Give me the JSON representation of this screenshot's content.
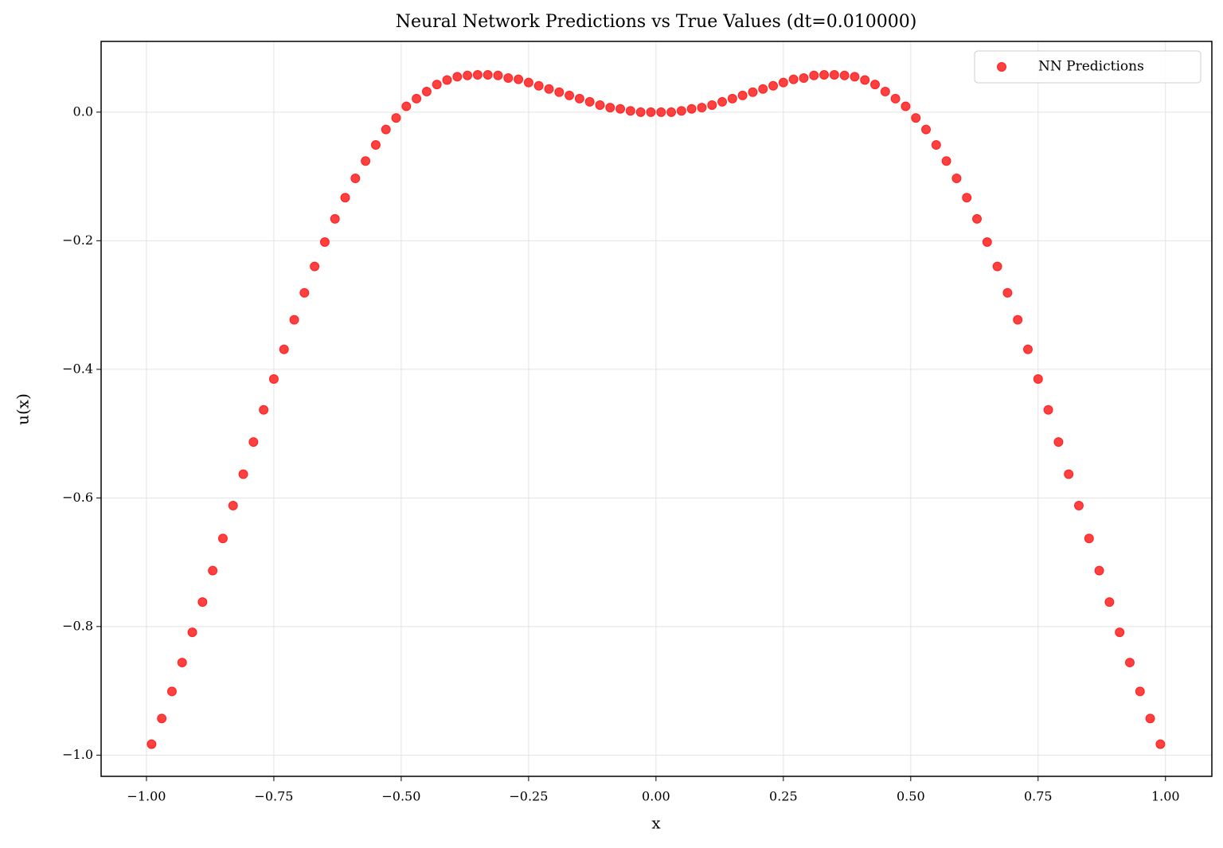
{
  "chart_data": {
    "type": "scatter",
    "title": "Neural Network Predictions vs True Values (dt=0.010000)",
    "x_label": "x",
    "y_label": "u(x)",
    "x": [
      -0.99,
      -0.97,
      -0.95,
      -0.93,
      -0.91,
      -0.89,
      -0.87,
      -0.85,
      -0.83,
      -0.81,
      -0.79,
      -0.77,
      -0.75,
      -0.73,
      -0.71,
      -0.69,
      -0.67,
      -0.65,
      -0.63,
      -0.61,
      -0.59,
      -0.57,
      -0.55,
      -0.53,
      -0.51,
      -0.49,
      -0.47,
      -0.45,
      -0.43,
      -0.41,
      -0.39,
      -0.37,
      -0.35,
      -0.33,
      -0.31,
      -0.29,
      -0.27,
      -0.25,
      -0.23,
      -0.21,
      -0.19,
      -0.17,
      -0.15,
      -0.13,
      -0.11,
      -0.09,
      -0.07,
      -0.05,
      -0.03,
      -0.01,
      0.01,
      0.03,
      0.05,
      0.07,
      0.09,
      0.11,
      0.13,
      0.15,
      0.17,
      0.19,
      0.21,
      0.23,
      0.25,
      0.27,
      0.29,
      0.31,
      0.33,
      0.35,
      0.37,
      0.39,
      0.41,
      0.43,
      0.45,
      0.47,
      0.49,
      0.51,
      0.53,
      0.55,
      0.57,
      0.59,
      0.61,
      0.63,
      0.65,
      0.67,
      0.69,
      0.71,
      0.73,
      0.75,
      0.77,
      0.79,
      0.81,
      0.83,
      0.85,
      0.87,
      0.89,
      0.91,
      0.93,
      0.95,
      0.97,
      0.99
    ],
    "series": [
      {
        "name": "NN Predictions",
        "color": "#ff0000",
        "alpha": 0.75,
        "values": [
          -0.983,
          -0.943,
          -0.901,
          -0.856,
          -0.809,
          -0.762,
          -0.713,
          -0.663,
          -0.612,
          -0.563,
          -0.513,
          -0.463,
          -0.415,
          -0.369,
          -0.323,
          -0.281,
          -0.24,
          -0.202,
          -0.166,
          -0.133,
          -0.103,
          -0.076,
          -0.051,
          -0.027,
          -0.009,
          0.009,
          0.021,
          0.032,
          0.043,
          0.05,
          0.055,
          0.057,
          0.058,
          0.058,
          0.057,
          0.053,
          0.051,
          0.046,
          0.041,
          0.036,
          0.031,
          0.026,
          0.021,
          0.016,
          0.011,
          0.007,
          0.005,
          0.002,
          0.0,
          0.0,
          0.0,
          0.0,
          0.002,
          0.005,
          0.007,
          0.011,
          0.016,
          0.021,
          0.026,
          0.031,
          0.036,
          0.041,
          0.046,
          0.051,
          0.053,
          0.057,
          0.058,
          0.058,
          0.057,
          0.055,
          0.05,
          0.043,
          0.032,
          0.021,
          0.009,
          -0.009,
          -0.027,
          -0.051,
          -0.076,
          -0.103,
          -0.133,
          -0.166,
          -0.202,
          -0.24,
          -0.281,
          -0.323,
          -0.369,
          -0.415,
          -0.463,
          -0.513,
          -0.563,
          -0.612,
          -0.663,
          -0.713,
          -0.762,
          -0.809,
          -0.856,
          -0.901,
          -0.943,
          -0.983
        ]
      }
    ],
    "xlim": [
      -1.089,
      1.091
    ],
    "ylim": [
      -1.033,
      0.11
    ],
    "xticks": [
      {
        "value": -1,
        "label": "−1.00"
      },
      {
        "value": -0.75,
        "label": "−0.75"
      },
      {
        "value": -0.5,
        "label": "−0.50"
      },
      {
        "value": -0.25,
        "label": "−0.25"
      },
      {
        "value": 0,
        "label": "0.00"
      },
      {
        "value": 0.25,
        "label": "0.25"
      },
      {
        "value": 0.5,
        "label": "0.50"
      },
      {
        "value": 0.75,
        "label": "0.75"
      },
      {
        "value": 1,
        "label": "1.00"
      }
    ],
    "yticks": [
      {
        "value": -1,
        "label": "−1.0"
      },
      {
        "value": -0.8,
        "label": "−0.8"
      },
      {
        "value": -0.6,
        "label": "−0.6"
      },
      {
        "value": -0.4,
        "label": "−0.4"
      },
      {
        "value": -0.2,
        "label": "−0.2"
      },
      {
        "value": 0,
        "label": "0.0"
      }
    ],
    "grid": true,
    "legend": "upper right"
  }
}
